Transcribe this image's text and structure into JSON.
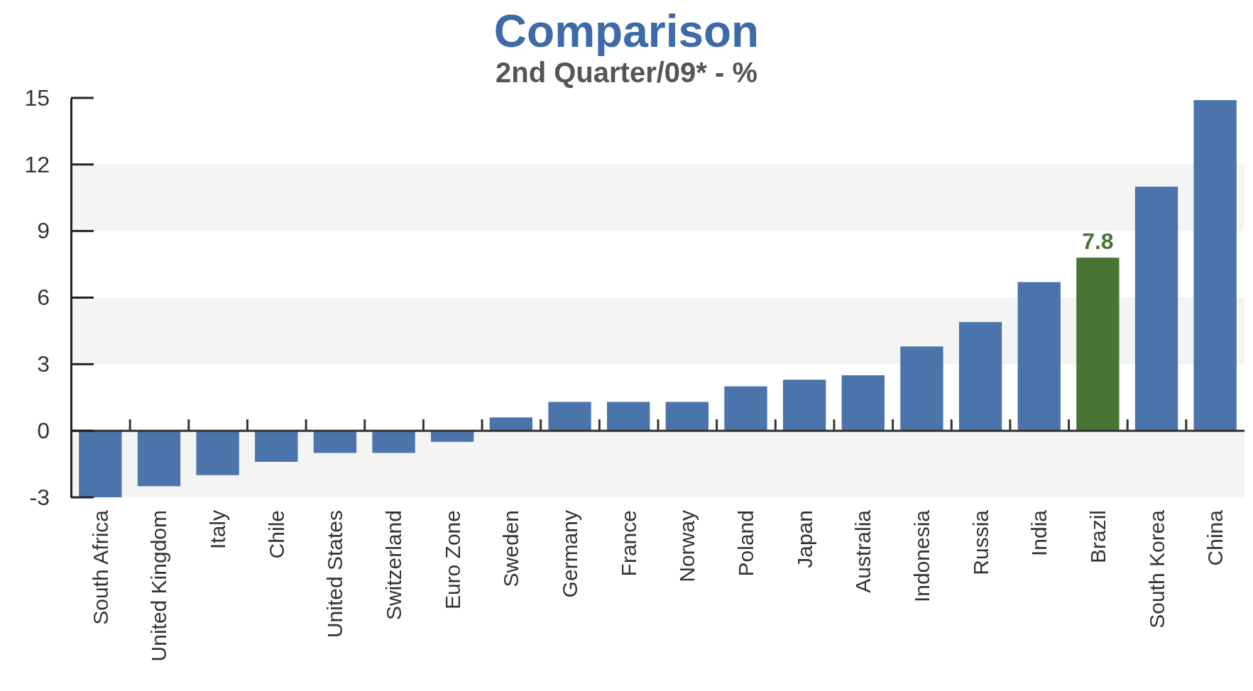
{
  "chart_data": {
    "type": "bar",
    "title": "Comparison",
    "subtitle": "2nd Quarter/09* - %",
    "categories": [
      "South Africa",
      "United Kingdom",
      "Italy",
      "Chile",
      "United States",
      "Switzerland",
      "Euro Zone",
      "Sweden",
      "Germany",
      "France",
      "Norway",
      "Poland",
      "Japan",
      "Australia",
      "Indonesia",
      "Russia",
      "India",
      "Brazil",
      "South Korea",
      "China"
    ],
    "values": [
      -3,
      -2.5,
      -2,
      -1.4,
      -1,
      -1,
      -0.5,
      0.6,
      1.3,
      1.3,
      1.3,
      2,
      2.3,
      2.5,
      3.8,
      4.9,
      6.7,
      7.8,
      11,
      14.9
    ],
    "colors": [
      "#4a74aa",
      "#4a74aa",
      "#4a74aa",
      "#4a74aa",
      "#4a74aa",
      "#4a74aa",
      "#4a74aa",
      "#4a74aa",
      "#4a74aa",
      "#4a74aa",
      "#4a74aa",
      "#4a74aa",
      "#4a74aa",
      "#4a74aa",
      "#4a74aa",
      "#4a74aa",
      "#4a74aa",
      "#477534",
      "#4a74aa",
      "#4a74aa"
    ],
    "value_labels": [
      null,
      null,
      null,
      null,
      null,
      null,
      null,
      null,
      null,
      null,
      null,
      null,
      null,
      null,
      null,
      null,
      null,
      "7.8",
      null,
      null
    ],
    "ylim": [
      -3,
      15
    ],
    "yticks": [
      -3,
      0,
      3,
      6,
      9,
      12,
      15
    ],
    "grid": "y"
  }
}
